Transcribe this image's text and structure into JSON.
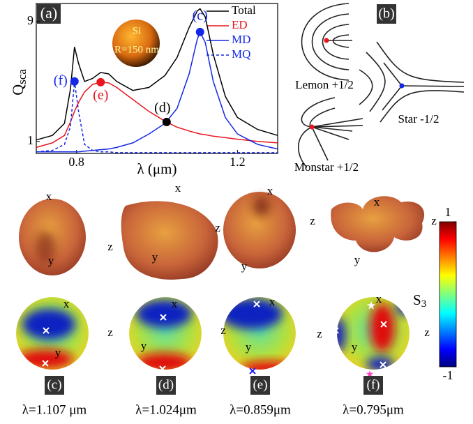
{
  "chart_data": {
    "type": "line",
    "panel_label": "(a)",
    "xlabel": "λ (μm)",
    "ylabel": "Q",
    "ylabel_subscript": "sca",
    "inset_material": "Si",
    "inset_radius": "R=150 nm",
    "x": [
      0.7,
      0.74,
      0.77,
      0.785,
      0.795,
      0.805,
      0.82,
      0.84,
      0.86,
      0.88,
      0.9,
      0.94,
      0.98,
      1.02,
      1.05,
      1.08,
      1.1,
      1.107,
      1.12,
      1.14,
      1.17,
      1.2,
      1.25,
      1.3
    ],
    "series": [
      {
        "name": "Total",
        "color": "#000000",
        "dashed": false,
        "values": [
          1.1,
          1.4,
          2.2,
          4.5,
          7.3,
          6.2,
          5.0,
          5.2,
          5.6,
          5.5,
          5.0,
          4.4,
          4.6,
          5.4,
          6.6,
          8.6,
          9.7,
          9.85,
          9.3,
          6.8,
          4.0,
          2.6,
          1.8,
          1.4
        ]
      },
      {
        "name": "ED",
        "color": "#e8141e",
        "dashed": false,
        "values": [
          0.6,
          0.9,
          1.4,
          2.3,
          3.0,
          3.6,
          4.3,
          4.8,
          4.95,
          4.9,
          4.6,
          3.8,
          3.0,
          2.35,
          1.95,
          1.7,
          1.55,
          1.5,
          1.45,
          1.35,
          1.25,
          1.15,
          1.0,
          0.9
        ]
      },
      {
        "name": "MD",
        "color": "#1428e6",
        "dashed": false,
        "values": [
          0.3,
          0.3,
          0.3,
          0.3,
          0.3,
          0.3,
          0.35,
          0.4,
          0.45,
          0.5,
          0.6,
          0.9,
          1.5,
          2.2,
          3.2,
          5.5,
          7.8,
          8.3,
          7.6,
          5.0,
          2.6,
          1.5,
          0.8,
          0.5
        ]
      },
      {
        "name": "MQ",
        "color": "#1428e6",
        "dashed": true,
        "values": [
          0.3,
          0.4,
          0.8,
          2.0,
          5.0,
          3.0,
          0.8,
          0.4,
          0.3,
          0.3,
          0.25,
          0.25,
          0.25,
          0.25,
          0.25,
          0.25,
          0.25,
          0.25,
          0.25,
          0.25,
          0.25,
          0.25,
          0.25,
          0.25
        ]
      }
    ],
    "points": [
      {
        "label": "(c)",
        "x": 1.107,
        "y": 8.3,
        "color": "#1428e6"
      },
      {
        "label": "(d)",
        "x": 1.024,
        "y": 2.3,
        "color": "#000000"
      },
      {
        "label": "(e)",
        "x": 0.86,
        "y": 4.95,
        "color": "#e8141e"
      },
      {
        "label": "(f)",
        "x": 0.795,
        "y": 5.0,
        "color": "#1428e6"
      }
    ],
    "xlim": [
      0.7,
      1.3
    ],
    "ylim": [
      0.2,
      10.2
    ],
    "xticks": [
      0.8,
      1.2
    ],
    "yticks": [
      1,
      9
    ]
  },
  "panel_b": {
    "label": "(b)",
    "lemon": "Lemon +1/2",
    "star": "Star -1/2",
    "monstar": "Monstar +1/2"
  },
  "axes": [
    "x",
    "y",
    "z"
  ],
  "colorbar": {
    "label": "S",
    "label_subscript": "3",
    "lim": [
      -1,
      1
    ],
    "ticks": [
      1,
      -1
    ]
  },
  "columns": [
    {
      "label": "(c)",
      "wavelength": "λ=1.107 μm"
    },
    {
      "label": "(d)",
      "wavelength": "λ=1.024μm"
    },
    {
      "label": "(e)",
      "wavelength": "λ=0.859μm"
    },
    {
      "label": "(f)",
      "wavelength": "λ=0.795μm"
    }
  ]
}
